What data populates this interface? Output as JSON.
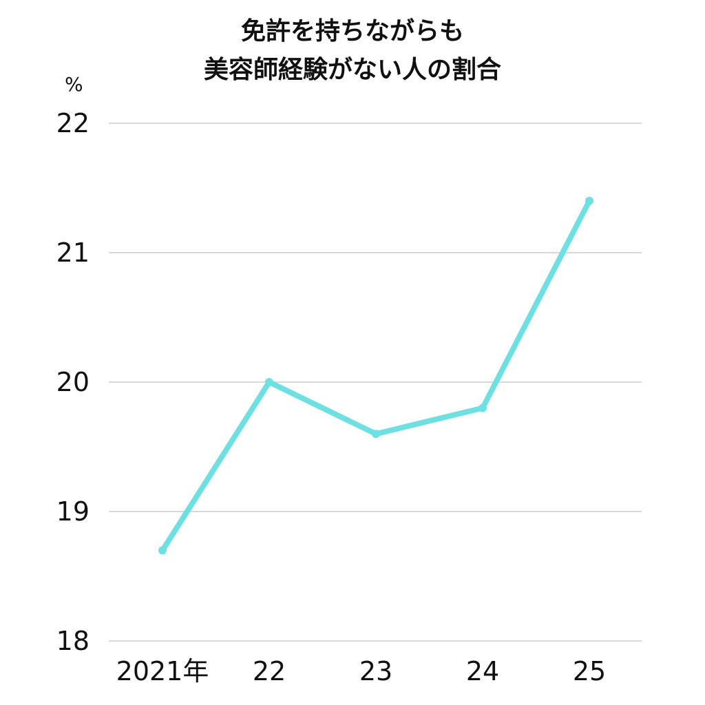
{
  "chart_data": {
    "type": "line",
    "title_lines": [
      "免許を持ちながらも",
      "美容師経験がない人の割合"
    ],
    "y_unit": "%",
    "categories": [
      "2021年",
      "22",
      "23",
      "24",
      "25"
    ],
    "series": [
      {
        "values": [
          18.7,
          20.0,
          19.6,
          19.8,
          21.4
        ]
      }
    ],
    "ylim": [
      18,
      22
    ],
    "yticks": [
      18,
      19,
      20,
      21,
      22
    ],
    "grid": true,
    "line_color": "#6fe0e2",
    "grid_color": "#cccccc"
  }
}
